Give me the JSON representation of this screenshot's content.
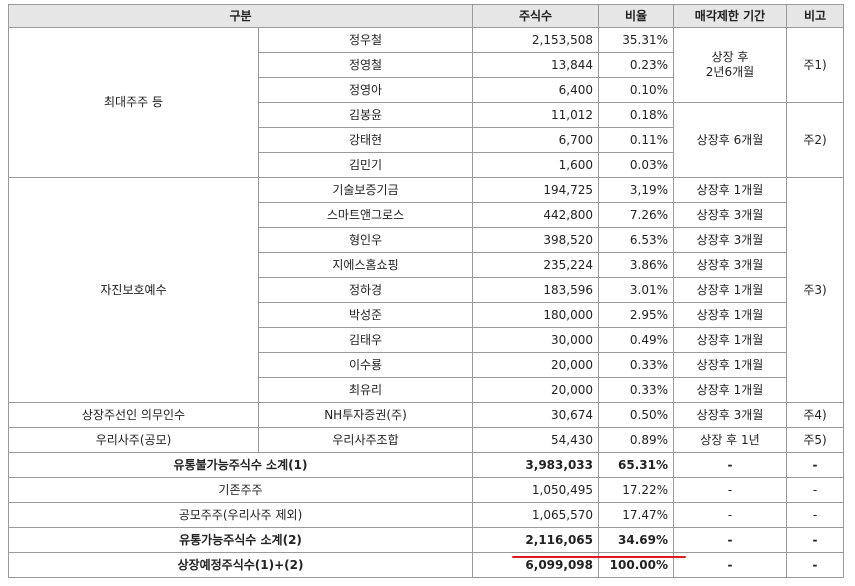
{
  "table": {
    "header": [
      "구분",
      "주식수",
      "비율",
      "매각제한 기간",
      "비고"
    ],
    "largest": {
      "group": "최대주주 등",
      "subgroups": [
        {
          "period": "상장 후\n2년6개월",
          "note": "주1)",
          "holders": [
            [
              "정우철",
              "2,153,508",
              "35.31%"
            ],
            [
              "정영철",
              "13,844",
              "0.23%"
            ],
            [
              "정영아",
              "6,400",
              "0.10%"
            ]
          ]
        },
        {
          "period": "상장후 6개월",
          "note": "주2)",
          "holders": [
            [
              "김봉윤",
              "11,012",
              "0.18%"
            ],
            [
              "강태현",
              "6,700",
              "0.11%"
            ],
            [
              "김민기",
              "1,600",
              "0.03%"
            ]
          ]
        }
      ]
    },
    "voluntary": {
      "group": "자진보호예수",
      "note": "주3)",
      "holders": [
        [
          "기술보증기금",
          "194,725",
          "3,19%",
          "상장후 1개월"
        ],
        [
          "스마트앤그로스",
          "442,800",
          "7.26%",
          "상장후 3개월"
        ],
        [
          "형인우",
          "398,520",
          "6.53%",
          "상장후 3개월"
        ],
        [
          "지에스홈쇼핑",
          "235,224",
          "3.86%",
          "상장후 3개월"
        ],
        [
          "정하경",
          "183,596",
          "3.01%",
          "상장후 1개월"
        ],
        [
          "박성준",
          "180,000",
          "2.95%",
          "상장후 1개월"
        ],
        [
          "김태우",
          "30,000",
          "0.49%",
          "상장후 1개월"
        ],
        [
          "이수룡",
          "20,000",
          "0.33%",
          "상장후 1개월"
        ],
        [
          "최유리",
          "20,000",
          "0.33%",
          "상장후 1개월"
        ]
      ]
    },
    "others": [
      [
        "상장주선인 의무인수",
        "NH투자증권(주)",
        "30,674",
        "0.50%",
        "상장후 3개월",
        "주4)"
      ],
      [
        "우리사주(공모)",
        "우리사주조합",
        "54,430",
        "0.89%",
        "상장 후 1년",
        "주5)"
      ]
    ],
    "summary": [
      {
        "cells": [
          "유통불가능주식수 소계(1)",
          "3,983,033",
          "65.31%",
          "-",
          "-"
        ],
        "bold": true
      },
      {
        "cells": [
          "기존주주",
          "1,050,495",
          "17.22%",
          "-",
          "-"
        ],
        "bold": false
      },
      {
        "cells": [
          "공모주주(우리사주 제외)",
          "1,065,570",
          "17.47%",
          "-",
          "-"
        ],
        "bold": false
      },
      {
        "cells": [
          "유통가능주식수 소계(2)",
          "2,116,065",
          "34.69%",
          "-",
          "-"
        ],
        "bold": true
      },
      {
        "cells": [
          "상장예정주식수(1)+(2)",
          "6,099,098",
          "100.00%",
          "-",
          "-"
        ],
        "bold": true
      }
    ]
  }
}
